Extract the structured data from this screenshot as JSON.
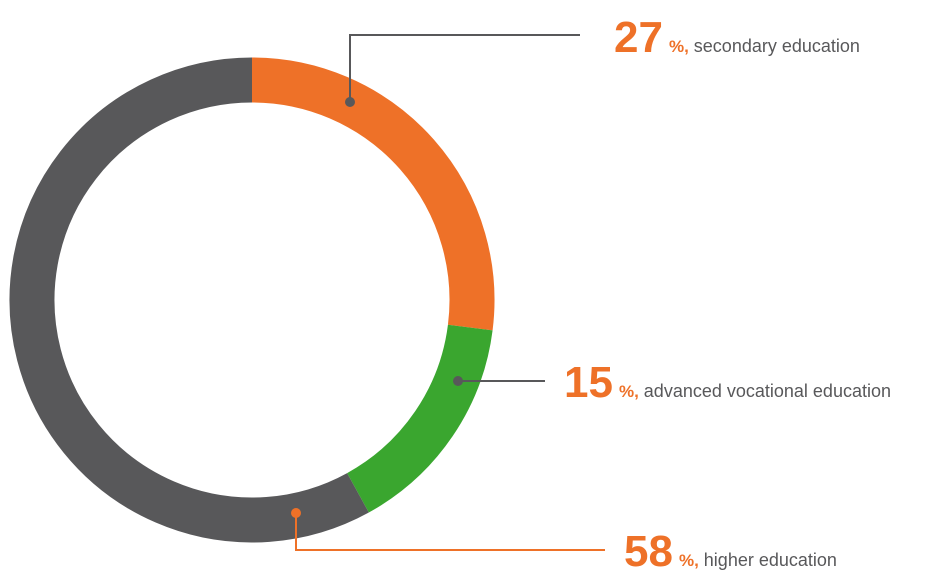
{
  "chart_data": {
    "type": "donut",
    "categories": [
      "secondary education",
      "advanced vocational education",
      "higher education"
    ],
    "series": [
      {
        "values": [
          27,
          15,
          58
        ],
        "colors": [
          "#ee7128",
          "#3aa62f",
          "#58585a"
        ]
      }
    ],
    "unit": "%,",
    "label_color": "#ee7128",
    "leader_colors": [
      "#58585a",
      "#58585a",
      "#ee7128"
    ]
  }
}
